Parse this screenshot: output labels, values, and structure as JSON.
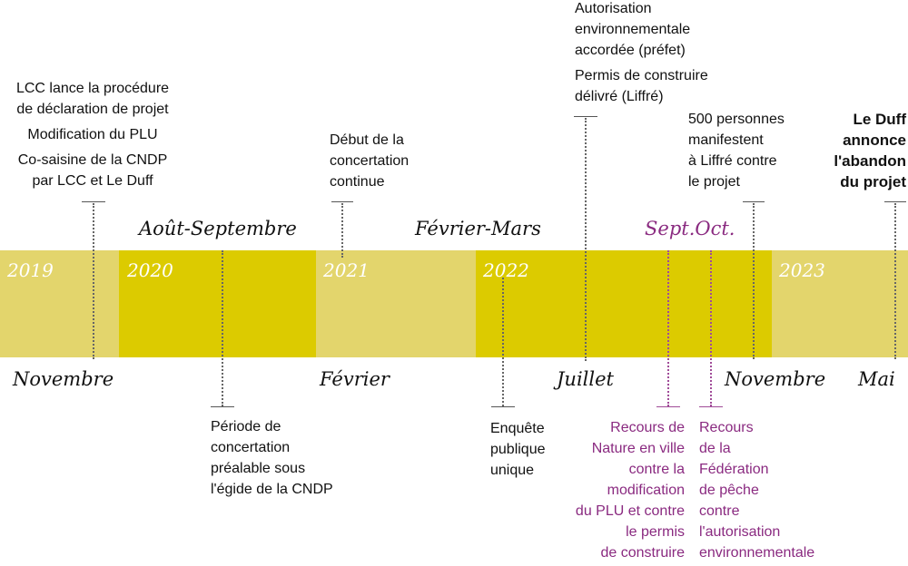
{
  "years": [
    "2019",
    "2020",
    "2021",
    "2022",
    "2023"
  ],
  "periods": {
    "aout_septembre": "Août-Septembre",
    "fevrier_mars": "Février-Mars",
    "sept_oct": "Sept.Oct."
  },
  "months": {
    "novembre_2019": "Novembre",
    "fevrier": "Février",
    "juillet": "Juillet",
    "novembre_2022": "Novembre",
    "mai": "Mai"
  },
  "events_above": {
    "nov_2019": [
      "LCC lance la procédure",
      "de déclaration de projet",
      "Modification du PLU",
      "Co-saisine de la CNDP",
      "par LCC et Le Duff"
    ],
    "fev_2021": [
      "Début de la",
      "concertation",
      "continue"
    ],
    "jul_2022": [
      "Autorisation",
      "environnementale",
      "accordée (préfet)",
      "Permis de construire",
      "délivré (Liffré)"
    ],
    "nov_2022": [
      "500 personnes",
      "manifestent",
      "à Liffré contre",
      "le projet"
    ],
    "mai_2023": [
      "Le Duff",
      "annonce",
      "l'abandon",
      "du projet"
    ]
  },
  "events_below": {
    "aout_sept_2020": [
      "Période de",
      "concertation",
      "préalable sous",
      "l'égide de la CNDP"
    ],
    "fev_mars_2022": [
      "Enquête",
      "publique",
      "unique"
    ],
    "sept_oct_nature": [
      "Recours de",
      "Nature en ville",
      "contre la",
      "modification",
      "du PLU et contre",
      "le permis",
      "de construire"
    ],
    "sept_oct_federation": [
      "Recours",
      "de la",
      "Fédération",
      "de pêche",
      "contre",
      "l'autorisation",
      "environnementale"
    ]
  },
  "colors": {
    "band_light": "#e3d56c",
    "band_dark": "#dccb00",
    "recours": "#8a2a80",
    "text": "#111111"
  }
}
